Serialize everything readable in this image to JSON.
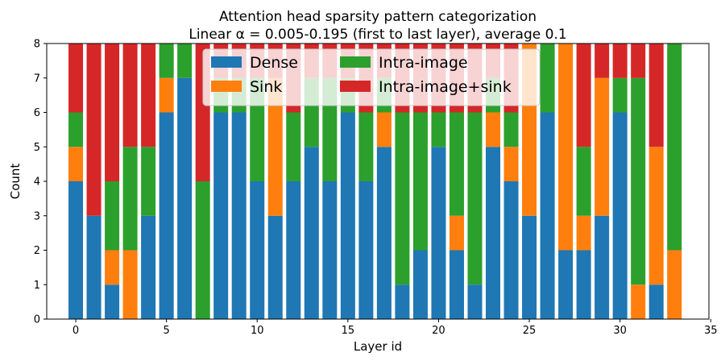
{
  "chart_data": {
    "type": "bar",
    "stacked": true,
    "title_line1": "Attention head sparsity pattern categorization",
    "title_line2": "Linear α = 0.005-0.195 (first to last layer), average 0.1",
    "xlabel": "Layer id",
    "ylabel": "Count",
    "xlim": [
      -1.6,
      34.9
    ],
    "ylim": [
      0,
      8
    ],
    "xticks": [
      0,
      5,
      10,
      15,
      20,
      25,
      30,
      35
    ],
    "yticks": [
      0,
      1,
      2,
      3,
      4,
      5,
      6,
      7,
      8
    ],
    "layers": [
      0,
      1,
      2,
      3,
      4,
      5,
      6,
      7,
      8,
      9,
      10,
      11,
      12,
      13,
      14,
      15,
      16,
      17,
      18,
      19,
      20,
      21,
      22,
      23,
      24,
      25,
      26,
      27,
      28,
      29,
      30,
      31,
      32,
      33
    ],
    "legend_position": "upper-center",
    "series": [
      {
        "name": "Dense",
        "color": "#1f77b4",
        "values": [
          4,
          3,
          1,
          0,
          3,
          6,
          7,
          0,
          6,
          6,
          4,
          3,
          4,
          5,
          4,
          6,
          4,
          5,
          1,
          2,
          5,
          2,
          1,
          5,
          4,
          3,
          6,
          2,
          2,
          3,
          6,
          0,
          1,
          0
        ]
      },
      {
        "name": "Sink",
        "color": "#ff7f0e",
        "values": [
          1,
          0,
          1,
          2,
          0,
          1,
          0,
          0,
          0,
          0,
          0,
          4,
          0,
          0,
          0,
          0,
          0,
          1,
          0,
          0,
          0,
          1,
          0,
          1,
          1,
          5,
          0,
          6,
          1,
          4,
          0,
          1,
          4,
          2
        ]
      },
      {
        "name": "Intra-image",
        "color": "#2ca02c",
        "values": [
          1,
          0,
          2,
          3,
          2,
          1,
          1,
          4,
          1,
          1,
          3,
          0,
          2,
          2,
          3,
          1,
          2,
          1,
          5,
          4,
          1,
          3,
          5,
          1,
          1,
          0,
          2,
          0,
          2,
          0,
          1,
          6,
          0,
          6
        ]
      },
      {
        "name": "Intra-image+sink",
        "color": "#d62728",
        "values": [
          2,
          5,
          4,
          3,
          3,
          0,
          0,
          4,
          1,
          1,
          1,
          1,
          2,
          1,
          1,
          1,
          2,
          1,
          2,
          2,
          2,
          2,
          2,
          1,
          2,
          0,
          0,
          0,
          3,
          1,
          1,
          1,
          3,
          0
        ]
      }
    ]
  }
}
